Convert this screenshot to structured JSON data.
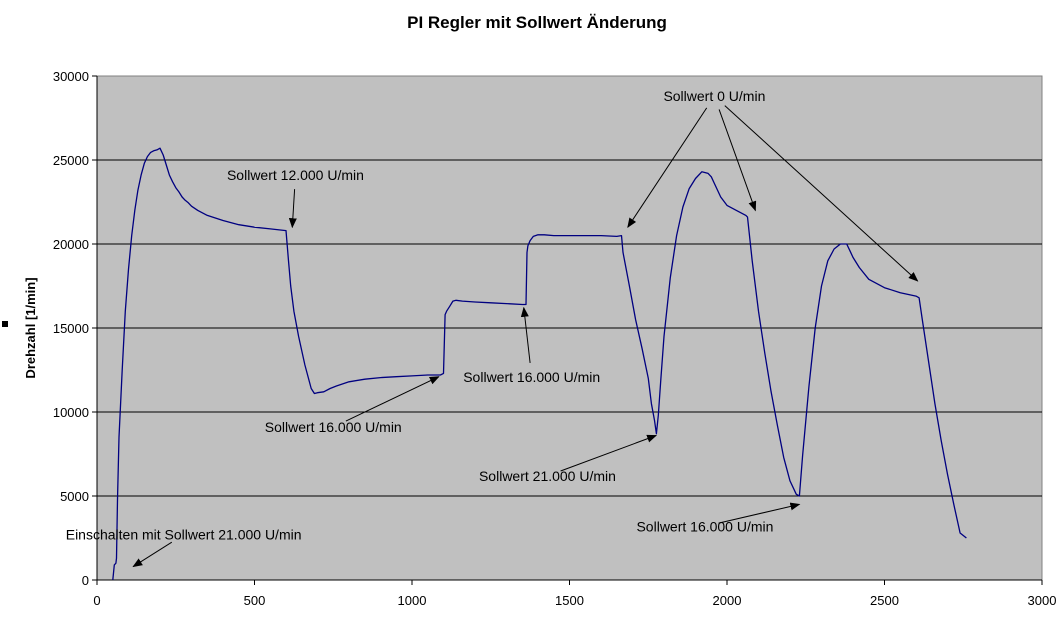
{
  "chart_data": {
    "type": "line",
    "title": "PI Regler mit Sollwert Änderung",
    "xlabel": "",
    "ylabel": "Drehzahl [1/min]",
    "xlim": [
      0,
      3000
    ],
    "ylim": [
      0,
      30000
    ],
    "x_ticks": [
      "0",
      "500",
      "1000",
      "1500",
      "2000",
      "2500",
      "3000"
    ],
    "y_ticks": [
      "0",
      "5000",
      "10000",
      "15000",
      "20000",
      "25000",
      "30000"
    ],
    "grid": "horizontal",
    "background_color": "#c0c0c0",
    "line_color": "#000080",
    "series": [
      {
        "x": [
          50,
          55,
          60,
          62,
          65,
          70,
          80,
          90,
          100,
          110,
          120,
          130,
          140,
          150,
          160,
          170,
          180,
          190,
          200,
          210,
          220,
          230,
          240,
          250,
          260,
          270,
          280,
          290,
          300,
          320,
          350,
          400,
          450,
          500,
          550,
          600,
          608,
          615,
          625,
          640,
          660,
          680,
          690,
          700,
          720,
          740,
          760,
          800,
          850,
          900,
          950,
          1000,
          1050,
          1080,
          1090,
          1100,
          1105,
          1110,
          1120,
          1130,
          1140,
          1160,
          1200,
          1250,
          1300,
          1350,
          1362,
          1365,
          1368,
          1375,
          1385,
          1400,
          1420,
          1450,
          1500,
          1550,
          1600,
          1650,
          1665,
          1670,
          1690,
          1710,
          1730,
          1750,
          1760,
          1770,
          1776,
          1782,
          1790,
          1800,
          1820,
          1840,
          1860,
          1880,
          1900,
          1920,
          1940,
          1950,
          1960,
          1980,
          2000,
          2030,
          2060,
          2065,
          2080,
          2100,
          2120,
          2140,
          2160,
          2180,
          2200,
          2220,
          2230,
          2240,
          2260,
          2280,
          2300,
          2320,
          2340,
          2360,
          2380,
          2390,
          2400,
          2420,
          2450,
          2500,
          2550,
          2600,
          2610,
          2620,
          2640,
          2660,
          2680,
          2700,
          2720,
          2740,
          2760
        ],
        "y": [
          0,
          900,
          1000,
          1300,
          4800,
          8500,
          12500,
          16000,
          18500,
          20500,
          22000,
          23200,
          24100,
          24800,
          25200,
          25450,
          25550,
          25600,
          25700,
          25300,
          24700,
          24100,
          23700,
          23350,
          23100,
          22800,
          22600,
          22450,
          22250,
          22000,
          21700,
          21400,
          21150,
          21000,
          20900,
          20800,
          19000,
          17500,
          16000,
          14500,
          12800,
          11400,
          11100,
          11150,
          11200,
          11400,
          11550,
          11800,
          11950,
          12050,
          12100,
          12150,
          12200,
          12200,
          12200,
          12300,
          15800,
          16000,
          16300,
          16600,
          16650,
          16600,
          16550,
          16500,
          16450,
          16400,
          16400,
          19500,
          19900,
          20200,
          20450,
          20550,
          20550,
          20500,
          20500,
          20500,
          20500,
          20450,
          20500,
          19500,
          17500,
          15500,
          13800,
          12000,
          10500,
          9500,
          8700,
          9800,
          12000,
          14500,
          18000,
          20500,
          22200,
          23300,
          23900,
          24300,
          24200,
          24000,
          23600,
          22800,
          22300,
          22000,
          21700,
          21600,
          19000,
          16000,
          13500,
          11200,
          9200,
          7300,
          5900,
          5100,
          5000,
          7400,
          11500,
          15000,
          17500,
          19000,
          19700,
          20000,
          20000,
          19600,
          19200,
          18600,
          17900,
          17400,
          17100,
          16900,
          16800,
          15500,
          13000,
          10500,
          8300,
          6300,
          4500,
          2800,
          2500
        ]
      }
    ],
    "annotations": [
      {
        "text": "Sollwert 0 U/min",
        "x": 1960,
        "y": 28500,
        "arrow_to": [
          [
            1685,
            21000
          ],
          [
            2090,
            22000
          ],
          [
            2605,
            17800
          ]
        ]
      },
      {
        "text": "Sollwert 12.000 U/min",
        "x": 630,
        "y": 23800,
        "arrow_to": [
          [
            620,
            21000
          ]
        ]
      },
      {
        "text": "Sollwert 16.000 U/min",
        "x": 1380,
        "y": 11800,
        "arrow_to": [
          [
            1355,
            16200
          ]
        ]
      },
      {
        "text": "Sollwert 16.000 U/min",
        "x": 750,
        "y": 8800,
        "arrow_to": [
          [
            1085,
            12100
          ]
        ]
      },
      {
        "text": "Sollwert 21.000 U/min",
        "x": 1430,
        "y": 5900,
        "arrow_to": [
          [
            1775,
            8600
          ]
        ]
      },
      {
        "text": "Sollwert 16.000 U/min",
        "x": 1930,
        "y": 2900,
        "arrow_to": [
          [
            2230,
            4500
          ]
        ]
      },
      {
        "text": "Einschalten mit Sollwert 21.000 U/min",
        "x": 275,
        "y": 2400,
        "arrow_to": [
          [
            115,
            800
          ]
        ]
      }
    ]
  }
}
